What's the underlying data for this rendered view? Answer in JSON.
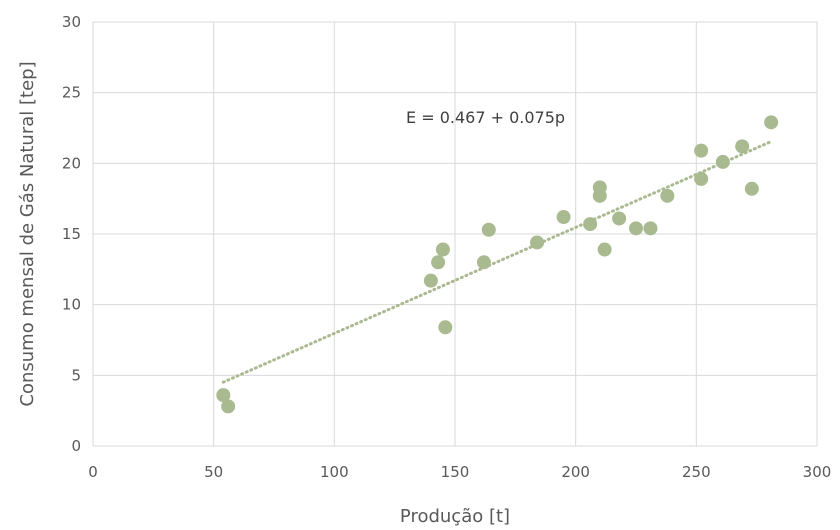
{
  "chart_data": {
    "type": "scatter",
    "xlabel": "Produção [t]",
    "ylabel": "Consumo mensal de Gás Natural [tep]",
    "xlim": [
      0,
      300
    ],
    "ylim": [
      0,
      30
    ],
    "x_ticks": [
      0,
      50,
      100,
      150,
      200,
      250,
      300
    ],
    "y_ticks": [
      0,
      5,
      10,
      15,
      20,
      25,
      30
    ],
    "grid": true,
    "legend": "none",
    "annotation": "E = 0.467 + 0.075p",
    "trendline": {
      "type": "linear",
      "intercept": 0.467,
      "slope": 0.075,
      "x_range": [
        54,
        281
      ],
      "style": "dotted"
    },
    "colors": {
      "marker": "#a9b990",
      "trendline": "#a9b990",
      "grid": "#d9d9d9"
    },
    "points": [
      {
        "x": 54,
        "y": 3.6
      },
      {
        "x": 56,
        "y": 2.8
      },
      {
        "x": 140,
        "y": 11.7
      },
      {
        "x": 143,
        "y": 13.0
      },
      {
        "x": 145,
        "y": 13.9
      },
      {
        "x": 146,
        "y": 8.4
      },
      {
        "x": 162,
        "y": 13.0
      },
      {
        "x": 164,
        "y": 15.3
      },
      {
        "x": 184,
        "y": 14.4
      },
      {
        "x": 195,
        "y": 16.2
      },
      {
        "x": 206,
        "y": 15.7
      },
      {
        "x": 210,
        "y": 18.3
      },
      {
        "x": 210,
        "y": 17.7
      },
      {
        "x": 212,
        "y": 13.9
      },
      {
        "x": 218,
        "y": 16.1
      },
      {
        "x": 225,
        "y": 15.4
      },
      {
        "x": 231,
        "y": 15.4
      },
      {
        "x": 238,
        "y": 17.7
      },
      {
        "x": 252,
        "y": 20.9
      },
      {
        "x": 252,
        "y": 18.9
      },
      {
        "x": 261,
        "y": 20.1
      },
      {
        "x": 269,
        "y": 21.2
      },
      {
        "x": 273,
        "y": 18.2
      },
      {
        "x": 281,
        "y": 22.9
      }
    ]
  }
}
